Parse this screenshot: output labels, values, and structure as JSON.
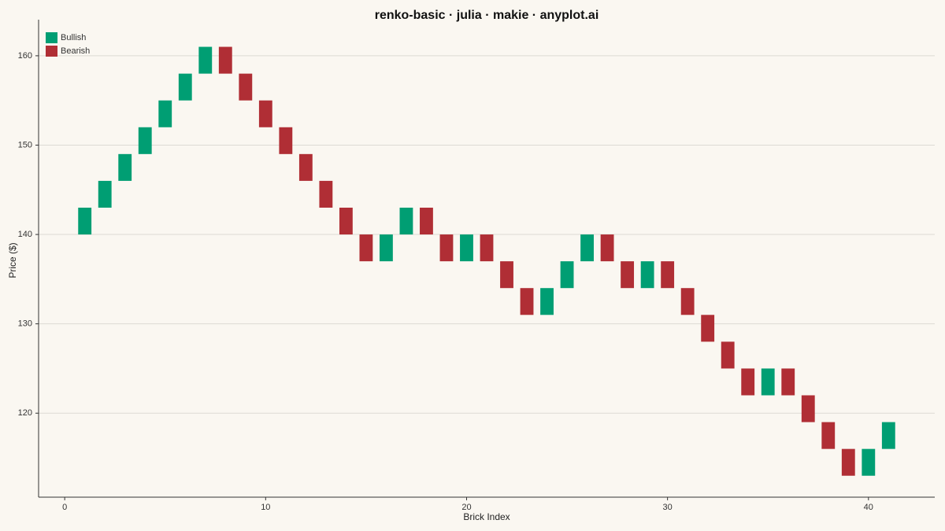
{
  "chart_data": {
    "type": "renko",
    "title": "renko-basic · julia · makie · anyplot.ai",
    "x_label": "Brick Index",
    "y_label": "Price ($)",
    "xlim": [
      -1.3,
      43.3
    ],
    "ylim": [
      110.6,
      163.6
    ],
    "xticks": [
      0,
      10,
      20,
      30,
      40
    ],
    "yticks": [
      120,
      130,
      140,
      150,
      160
    ],
    "grid": true,
    "legend": "top-left",
    "series": [
      {
        "name": "Bullish",
        "color": "#009e73",
        "x": [
          1,
          2,
          3,
          4,
          5,
          6,
          7,
          16,
          17,
          20,
          24,
          25,
          26,
          29,
          35,
          40,
          41
        ],
        "open": [
          140,
          143,
          146,
          149,
          152,
          155,
          158,
          137,
          140,
          137,
          131,
          134,
          137,
          134,
          122,
          113,
          116
        ],
        "close": [
          143,
          146,
          149,
          152,
          155,
          158,
          161,
          140,
          143,
          140,
          134,
          137,
          140,
          137,
          125,
          116,
          119
        ]
      },
      {
        "name": "Bearish",
        "color": "#b02e35",
        "x": [
          8,
          9,
          10,
          11,
          12,
          13,
          14,
          15,
          18,
          19,
          21,
          22,
          23,
          27,
          28,
          30,
          31,
          32,
          33,
          34,
          36,
          37,
          38,
          39
        ],
        "open": [
          161,
          158,
          155,
          152,
          149,
          146,
          143,
          140,
          143,
          140,
          140,
          137,
          134,
          140,
          137,
          137,
          134,
          131,
          128,
          125,
          125,
          122,
          119,
          116
        ],
        "close": [
          158,
          155,
          152,
          149,
          146,
          143,
          140,
          137,
          140,
          137,
          137,
          134,
          131,
          137,
          134,
          134,
          131,
          128,
          125,
          122,
          122,
          119,
          116,
          113
        ]
      }
    ]
  }
}
